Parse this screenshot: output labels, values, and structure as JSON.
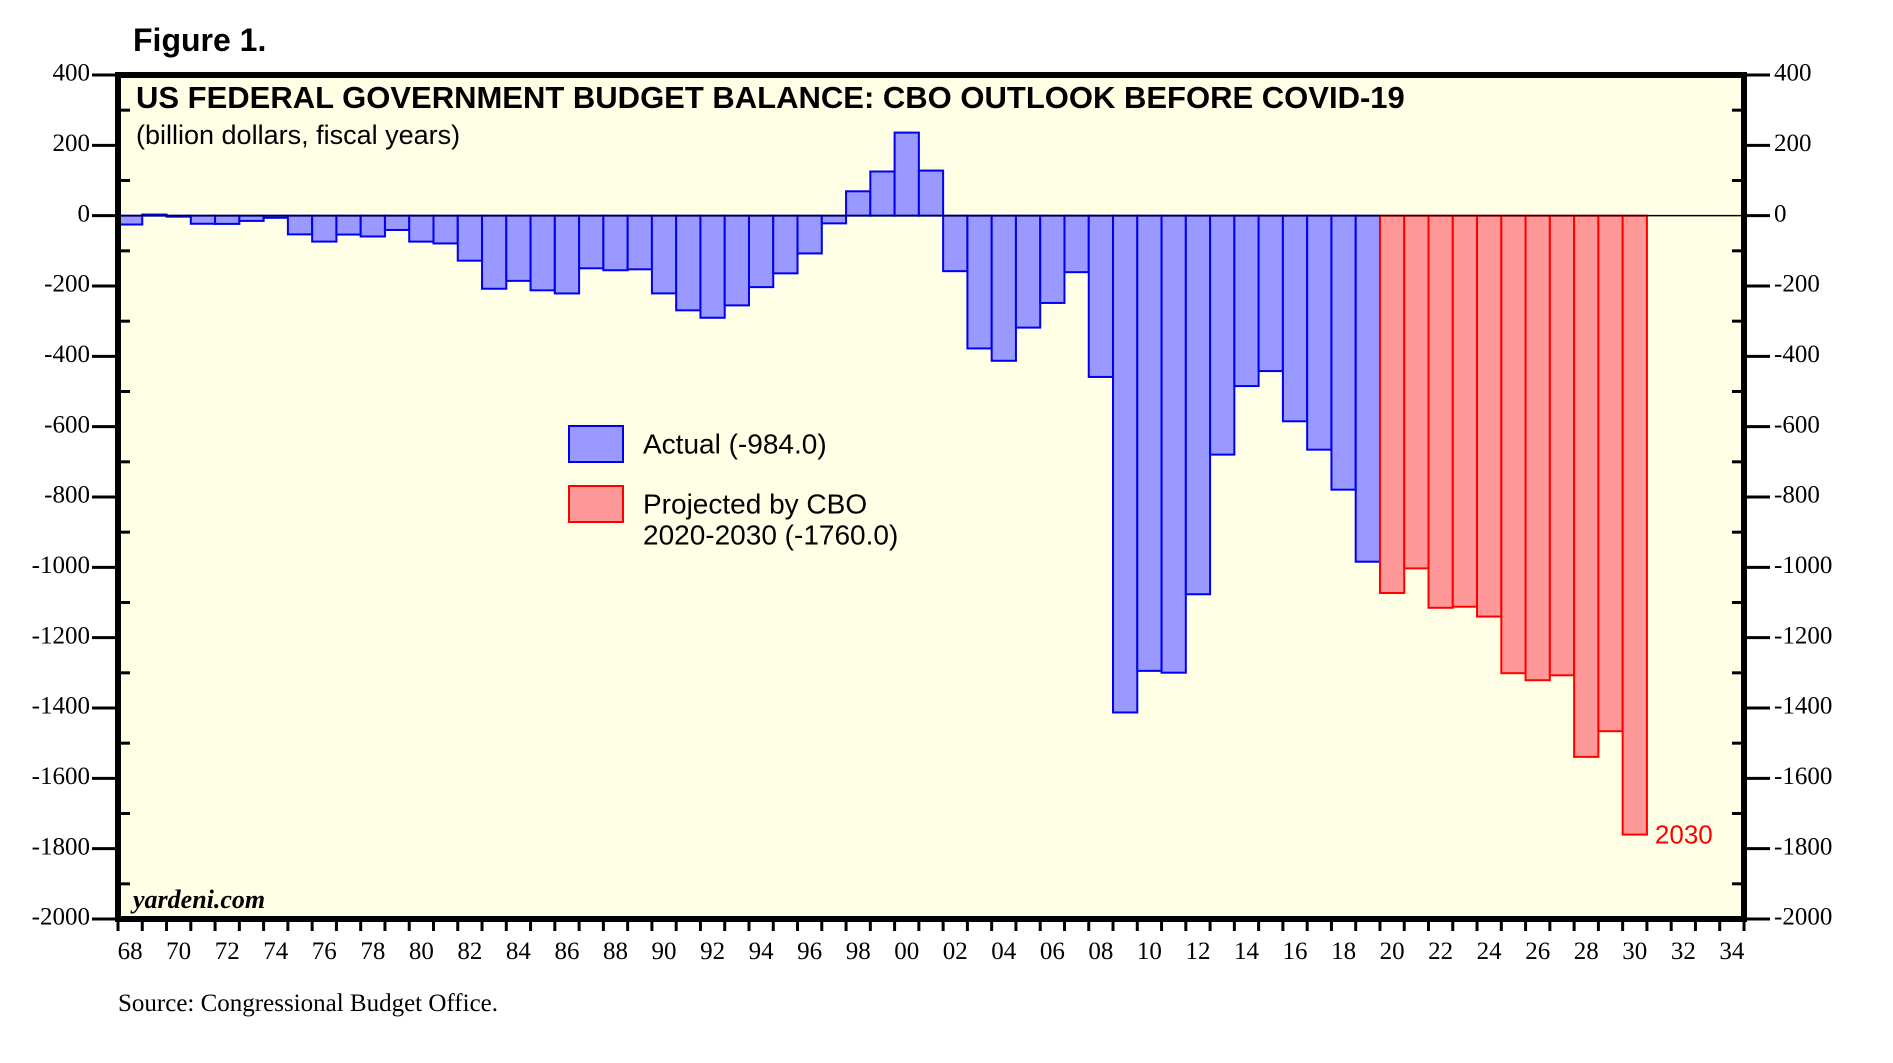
{
  "figure_label": "Figure 1.",
  "source": "Source: Congressional Budget Office.",
  "chart_data": {
    "type": "bar",
    "title": "US FEDERAL GOVERNMENT BUDGET BALANCE: CBO OUTLOOK BEFORE COVID-19",
    "subtitle": "(billion dollars, fiscal years)",
    "watermark": "yardeni.com",
    "xlabel": "",
    "ylabel": "",
    "ylim": [
      -2000,
      400
    ],
    "xlim": [
      1968,
      2034
    ],
    "y_ticks": [
      400,
      200,
      0,
      -200,
      -400,
      -600,
      -800,
      -1000,
      -1200,
      -1400,
      -1600,
      -1800,
      -2000
    ],
    "x_tick_labels": [
      "68",
      "70",
      "72",
      "74",
      "76",
      "78",
      "80",
      "82",
      "84",
      "86",
      "88",
      "90",
      "92",
      "94",
      "96",
      "98",
      "00",
      "02",
      "04",
      "06",
      "08",
      "10",
      "12",
      "14",
      "16",
      "18",
      "20",
      "22",
      "24",
      "26",
      "28",
      "30",
      "32",
      "34"
    ],
    "grid": false,
    "legend_position": "center-left",
    "colors": {
      "plot_background": "#ffffe6",
      "actual_fill": "#9999ff",
      "actual_stroke": "#0000ee",
      "projected_fill": "#ff9999",
      "projected_stroke": "#ff0000",
      "annotation": "#ff0000"
    },
    "series": [
      {
        "name": "Actual (-984.0)",
        "legend_lines": [
          "Actual (-984.0)"
        ],
        "x": [
          1968,
          1969,
          1970,
          1971,
          1972,
          1973,
          1974,
          1975,
          1976,
          1977,
          1978,
          1979,
          1980,
          1981,
          1982,
          1983,
          1984,
          1985,
          1986,
          1987,
          1988,
          1989,
          1990,
          1991,
          1992,
          1993,
          1994,
          1995,
          1996,
          1997,
          1998,
          1999,
          2000,
          2001,
          2002,
          2003,
          2004,
          2005,
          2006,
          2007,
          2008,
          2009,
          2010,
          2011,
          2012,
          2013,
          2014,
          2015,
          2016,
          2017,
          2018,
          2019
        ],
        "values": [
          -25.2,
          3.2,
          -2.8,
          -23.0,
          -23.4,
          -14.9,
          -6.1,
          -53.2,
          -73.7,
          -53.7,
          -59.2,
          -40.7,
          -73.8,
          -79.0,
          -128.0,
          -207.8,
          -185.4,
          -212.3,
          -221.2,
          -149.7,
          -155.2,
          -152.6,
          -221.0,
          -269.2,
          -290.3,
          -255.1,
          -203.2,
          -164.0,
          -107.4,
          -21.9,
          69.3,
          125.6,
          236.2,
          128.2,
          -157.8,
          -377.6,
          -412.7,
          -318.3,
          -248.2,
          -160.7,
          -458.6,
          -1412.7,
          -1294.4,
          -1299.6,
          -1076.6,
          -679.5,
          -484.6,
          -441.9,
          -584.7,
          -665.4,
          -779.1,
          -984.0
        ]
      },
      {
        "name": "Projected by CBO 2020-2030 (-1760.0)",
        "legend_lines": [
          "Projected by CBO",
          "2020-2030 (-1760.0)"
        ],
        "x": [
          2020,
          2021,
          2022,
          2023,
          2024,
          2025,
          2026,
          2027,
          2028,
          2029,
          2030
        ],
        "values": [
          -1073,
          -1003,
          -1115,
          -1112,
          -1140,
          -1301,
          -1321,
          -1307,
          -1539,
          -1466,
          -1760
        ]
      }
    ],
    "annotations": [
      {
        "text": "2030",
        "x": 2030,
        "y": -1760
      }
    ]
  }
}
